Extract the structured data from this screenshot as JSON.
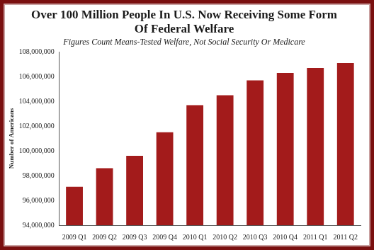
{
  "chart_data": {
    "type": "bar",
    "title": "Over 100 Million People In U.S. Now Receiving Some Form Of Federal Welfare",
    "subtitle": "Figures Count Means-Tested Welfare, Not Social Security Or Medicare",
    "y_label": "Number of Americans",
    "categories": [
      "2009 Q1",
      "2009 Q2",
      "2009 Q3",
      "2009 Q4",
      "2010 Q1",
      "2010 Q2",
      "2010 Q3",
      "2010 Q4",
      "2011 Q1",
      "2011 Q2"
    ],
    "values": [
      97100000,
      98600000,
      99600000,
      101500000,
      103700000,
      104500000,
      105700000,
      106300000,
      106700000,
      107100000
    ],
    "color": "#a31b1b",
    "ylim": [
      94000000,
      108000000
    ],
    "yticks": [
      {
        "value": 94000000,
        "label": "94,000,000"
      },
      {
        "value": 96000000,
        "label": "96,000,000"
      },
      {
        "value": 98000000,
        "label": "98,000,000"
      },
      {
        "value": 100000000,
        "label": "100,000,000"
      },
      {
        "value": 102000000,
        "label": "102,000,000"
      },
      {
        "value": 104000000,
        "label": "104,000,000"
      },
      {
        "value": 106000000,
        "label": "106,000,000"
      },
      {
        "value": 108000000,
        "label": "108,000,000"
      }
    ],
    "grid": false
  }
}
